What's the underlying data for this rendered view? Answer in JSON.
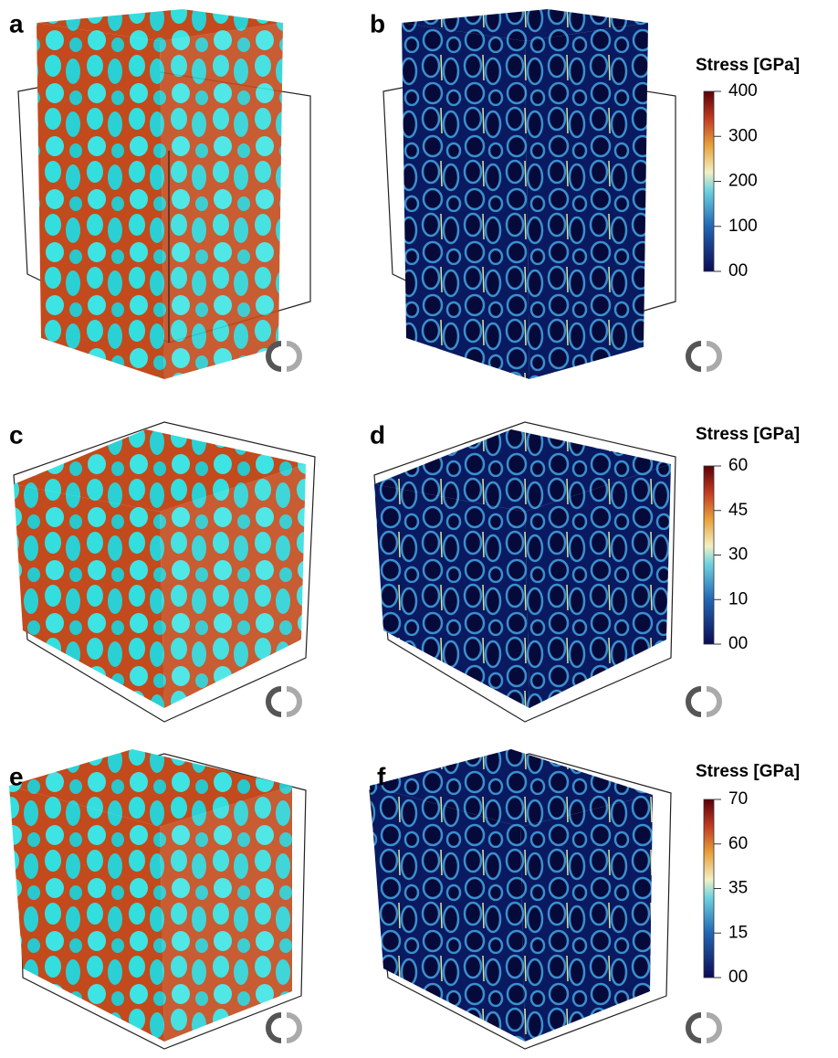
{
  "panels": [
    {
      "label": "a"
    },
    {
      "label": "b"
    },
    {
      "label": "c"
    },
    {
      "label": "d"
    },
    {
      "label": "e"
    },
    {
      "label": "f"
    }
  ],
  "colorbars": [
    {
      "title": "Stress [GPa]",
      "ticks": [
        "400",
        "300",
        "200",
        "100",
        "00"
      ]
    },
    {
      "title": "Stress [GPa]",
      "ticks": [
        "60",
        "45",
        "30",
        "10",
        "00"
      ]
    },
    {
      "title": "Stress [GPa]",
      "ticks": [
        "70",
        "60",
        "35",
        "15",
        "00"
      ]
    }
  ]
}
